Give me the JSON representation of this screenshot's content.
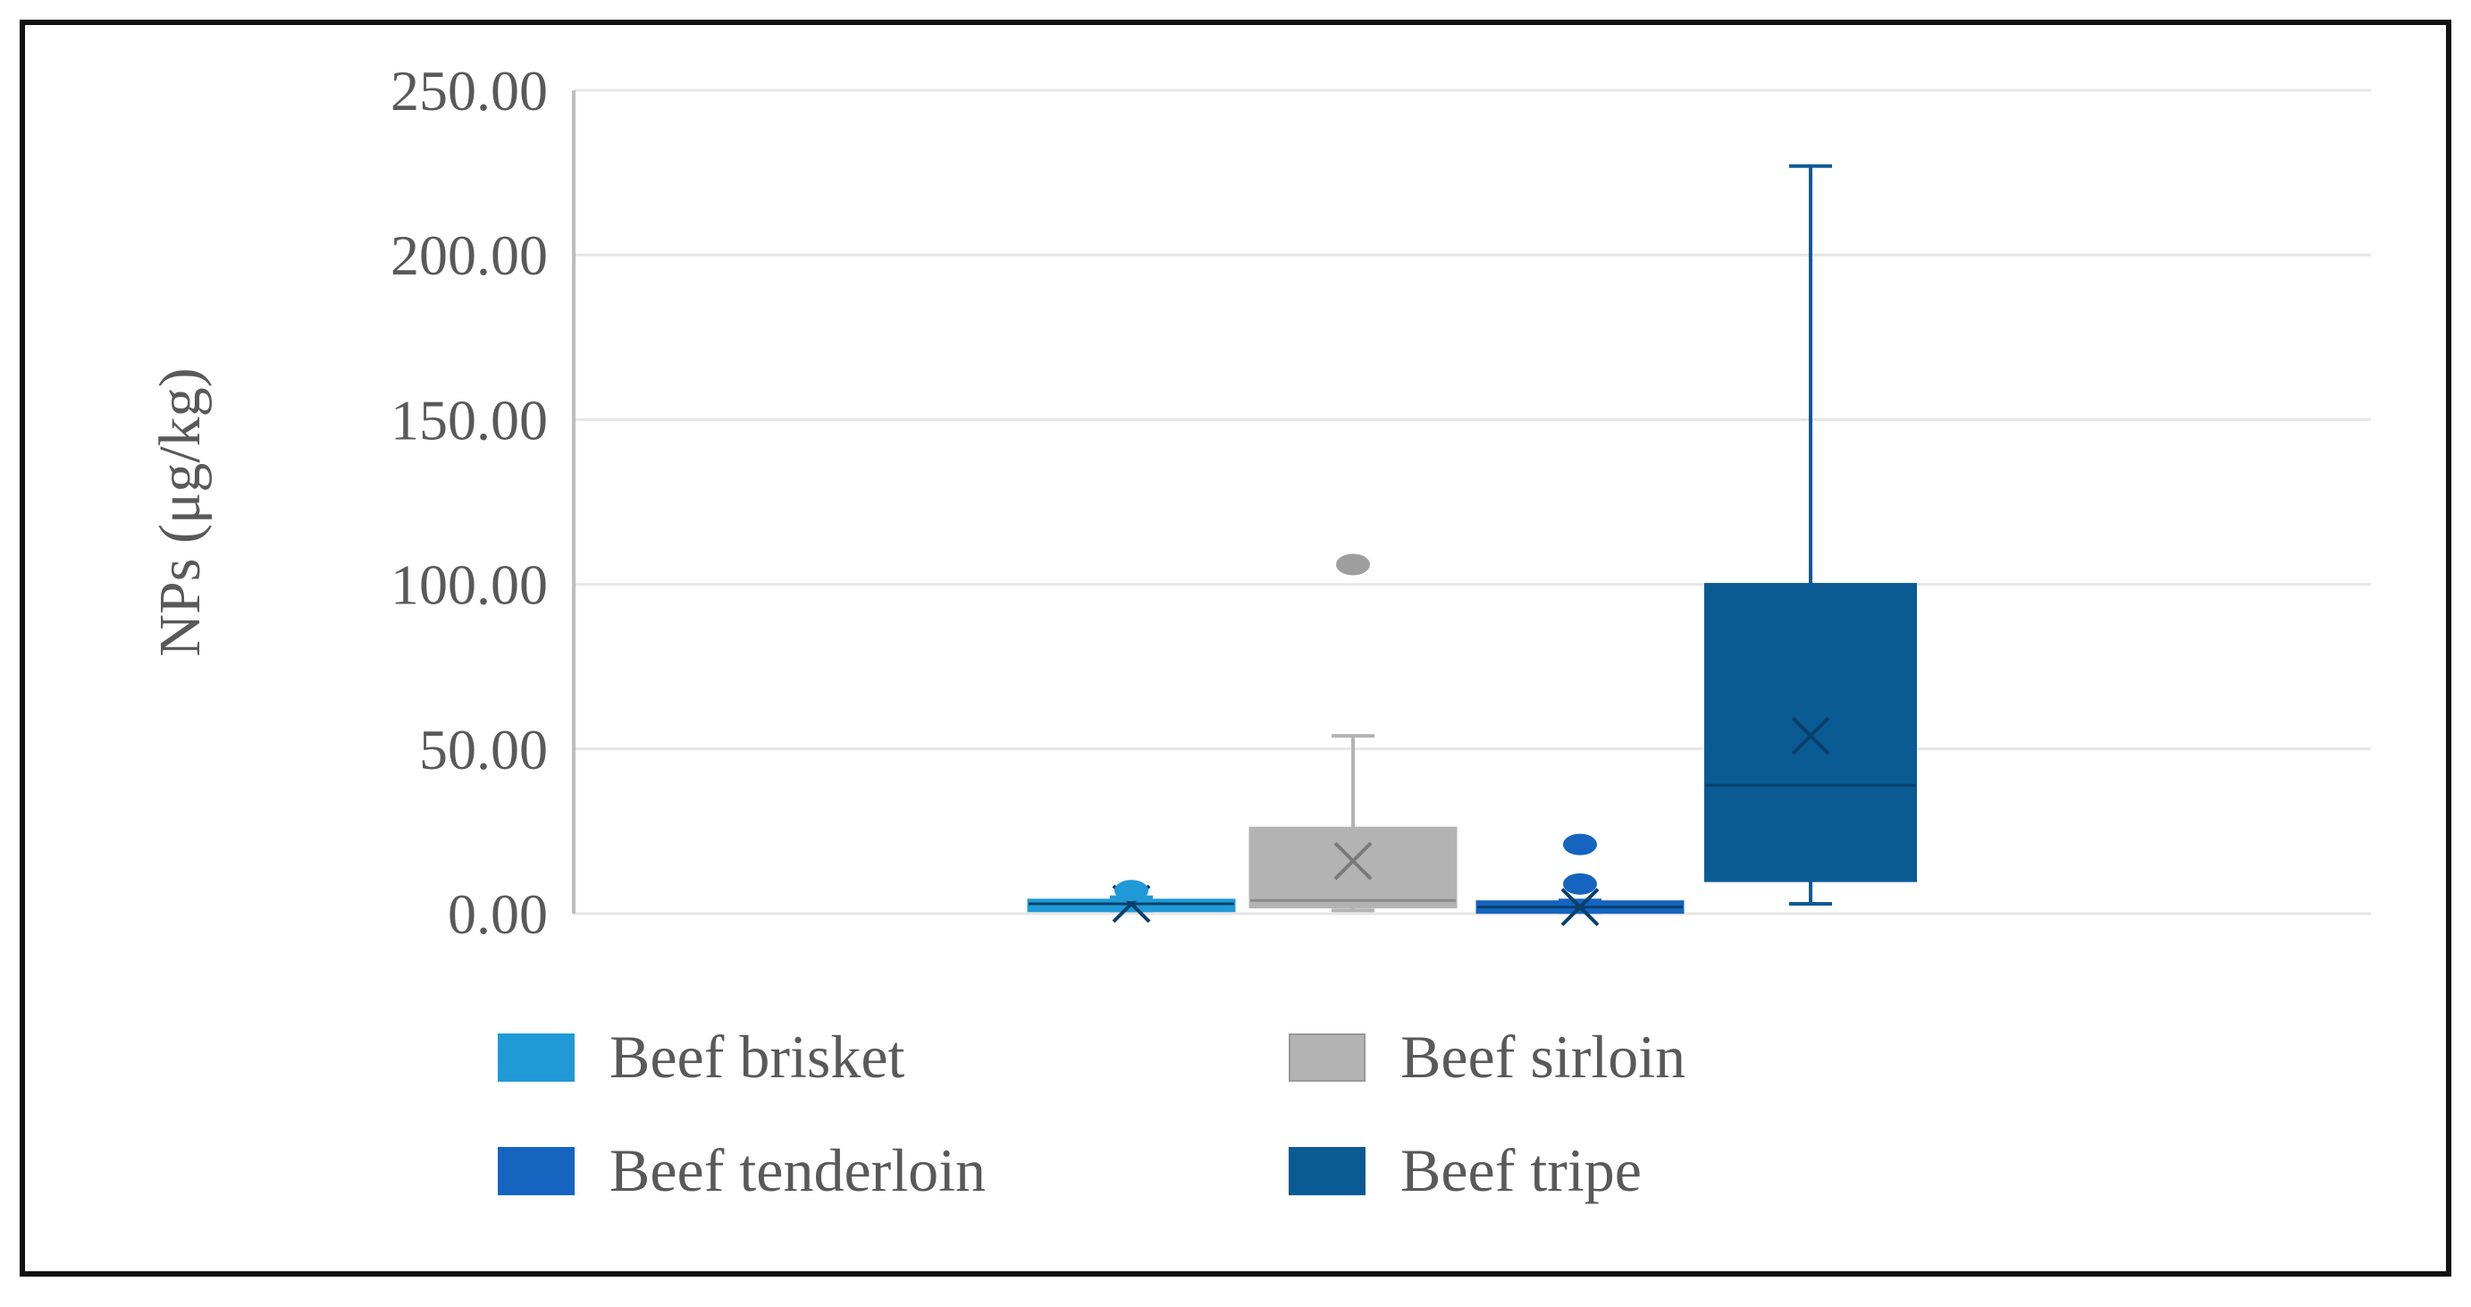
{
  "chart_data": {
    "type": "box",
    "title": "",
    "xlabel": "",
    "ylabel": "NPs (μg/kg)",
    "ylim": [
      0,
      250
    ],
    "y_ticks": [
      "0.00",
      "50.00",
      "100.00",
      "150.00",
      "200.00",
      "250.00"
    ],
    "grid": true,
    "legend_position": "bottom",
    "series": [
      {
        "name": "Beef brisket",
        "color": "#1f9ad6",
        "min": 1,
        "q1": 1,
        "median": 3,
        "q3": 4,
        "max": 5,
        "mean": 3,
        "outliers": [
          7
        ]
      },
      {
        "name": "Beef sirloin",
        "color": "#b3b3b3",
        "min": 1,
        "q1": 2,
        "median": 4,
        "q3": 26,
        "max": 54,
        "mean": 16,
        "outliers": [
          106
        ]
      },
      {
        "name": "Beef tenderloin",
        "color": "#1565c0",
        "min": 0.5,
        "q1": 1,
        "median": 2,
        "q3": 3,
        "max": 4,
        "mean": 2,
        "outliers": [
          9,
          21
        ]
      },
      {
        "name": "Beef tripe",
        "color": "#0a5a94",
        "min": 3,
        "q1": 10,
        "median": 39,
        "q3": 100,
        "max": 227,
        "mean": 54,
        "outliers": []
      }
    ]
  }
}
